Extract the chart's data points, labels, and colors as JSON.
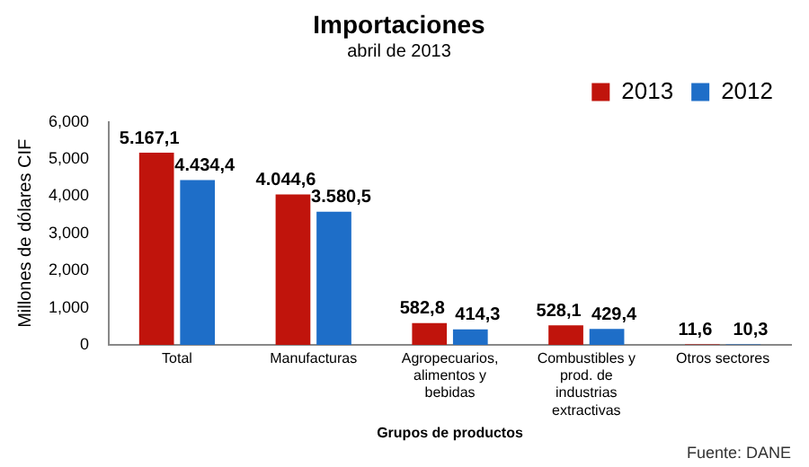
{
  "chart_data": {
    "type": "bar",
    "title": "Importaciones",
    "subtitle": "abril de 2013",
    "ylabel": "Millones de dólares CIF",
    "xlabel": "Grupos de productos",
    "categories": [
      "Total",
      "Manufacturas",
      "Agropecuarios, alimentos y bebidas",
      "Combustibles y prod. de industrias extractivas",
      "Otros sectores"
    ],
    "series": [
      {
        "name": "2013",
        "color": "#c0140c",
        "values": [
          5167.1,
          4044.6,
          582.8,
          528.1,
          11.6
        ],
        "value_labels": [
          "5.167,1",
          "4.044,6",
          "582,8",
          "528,1",
          "11,6"
        ]
      },
      {
        "name": "2012",
        "color": "#1e6ec8",
        "values": [
          4434.4,
          3580.5,
          414.3,
          429.4,
          10.3
        ],
        "value_labels": [
          "4.434,4",
          "3.580,5",
          "414,3",
          "429,4",
          "10,3"
        ]
      }
    ],
    "ylim": [
      0,
      6000
    ],
    "yticks": [
      {
        "value": 0,
        "label": "0"
      },
      {
        "value": 1000,
        "label": "1,000"
      },
      {
        "value": 2000,
        "label": "2,000"
      },
      {
        "value": 3000,
        "label": "3,000"
      },
      {
        "value": 4000,
        "label": "4,000"
      },
      {
        "value": 5000,
        "label": "5,000"
      },
      {
        "value": 6000,
        "label": "6,000"
      }
    ],
    "grid": false,
    "legend": "top right",
    "annotations": [
      "Fuente: DANE"
    ]
  }
}
